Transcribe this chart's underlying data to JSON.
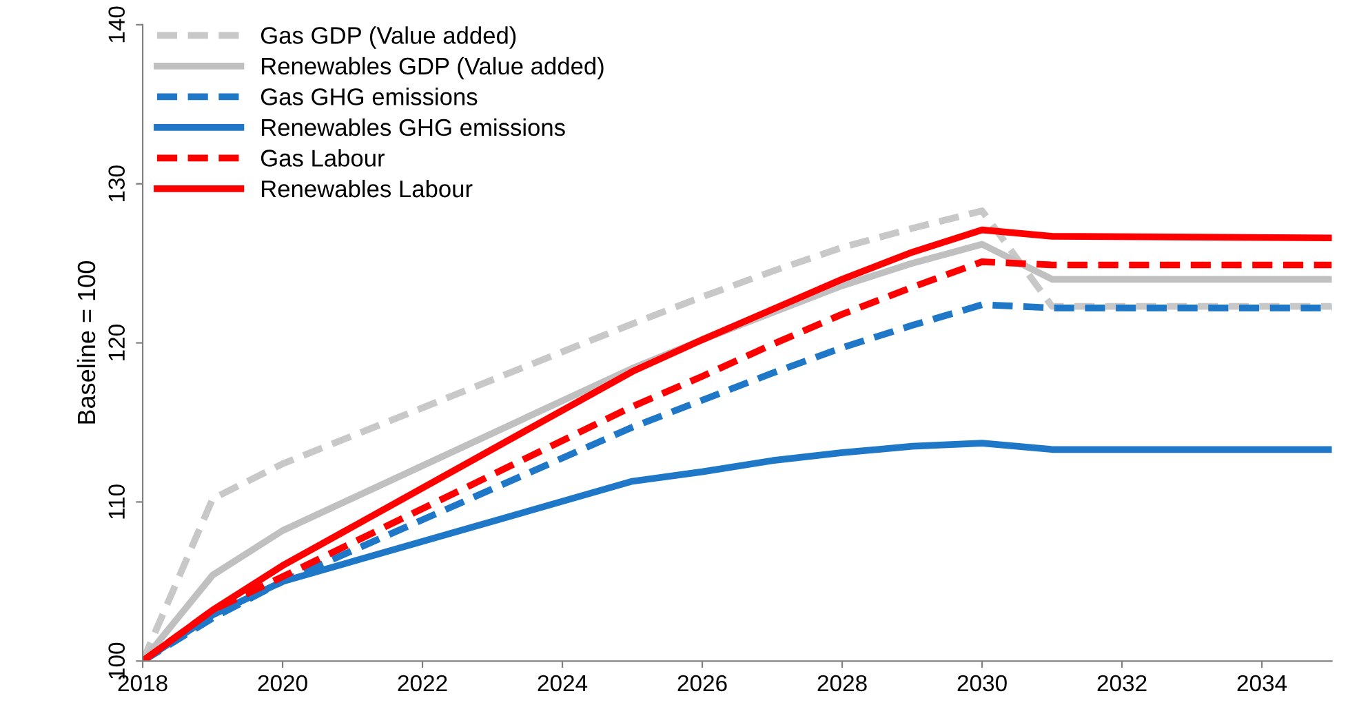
{
  "chart_data": {
    "type": "line",
    "ylabel": "Baseline = 100",
    "x": [
      2018,
      2019,
      2020,
      2025,
      2026,
      2027,
      2028,
      2029,
      2030,
      2031,
      2035
    ],
    "xlim": [
      2018,
      2035
    ],
    "xticks": [
      2018,
      2020,
      2022,
      2024,
      2026,
      2028,
      2030,
      2032,
      2034
    ],
    "ylim": [
      100,
      140
    ],
    "yticks": [
      100,
      110,
      120,
      130,
      140
    ],
    "grid": false,
    "legend": "top left",
    "marker": "none",
    "series": [
      {
        "name": "Gas GDP (Value added)",
        "color": "#c8c8c8",
        "line_style": "dashed",
        "values": [
          100,
          110.2,
          112.4,
          121.2,
          122.9,
          124.5,
          126,
          127.2,
          128.3,
          122.3,
          122.3
        ]
      },
      {
        "name": "Renewables GDP (Value added)",
        "color": "#c0c0c0",
        "line_style": "solid",
        "values": [
          100,
          105.4,
          108.2,
          118.4,
          120.2,
          121.9,
          123.6,
          125,
          126.2,
          124,
          124
        ]
      },
      {
        "name": "Gas GHG emissions",
        "color": "#1f77c8",
        "line_style": "dashed",
        "values": [
          100,
          102.7,
          105,
          114.7,
          116.4,
          118.1,
          119.7,
          121.1,
          122.4,
          122.2,
          122.2
        ]
      },
      {
        "name": "Renewables GHG emissions",
        "color": "#1f77c8",
        "line_style": "solid",
        "values": [
          100,
          102.9,
          105,
          111.3,
          111.9,
          112.6,
          113.1,
          113.5,
          113.7,
          113.3,
          113.3
        ]
      },
      {
        "name": "Gas Labour",
        "color": "#ff0000",
        "line_style": "dashed",
        "values": [
          100,
          103.2,
          105.3,
          116,
          117.9,
          119.9,
          121.8,
          123.5,
          125.1,
          124.9,
          124.9
        ]
      },
      {
        "name": "Renewables Labour",
        "color": "#ff0000",
        "line_style": "solid",
        "values": [
          100,
          103.2,
          106,
          118.2,
          120.2,
          122.1,
          124,
          125.7,
          127.1,
          126.7,
          126.6
        ]
      }
    ]
  }
}
